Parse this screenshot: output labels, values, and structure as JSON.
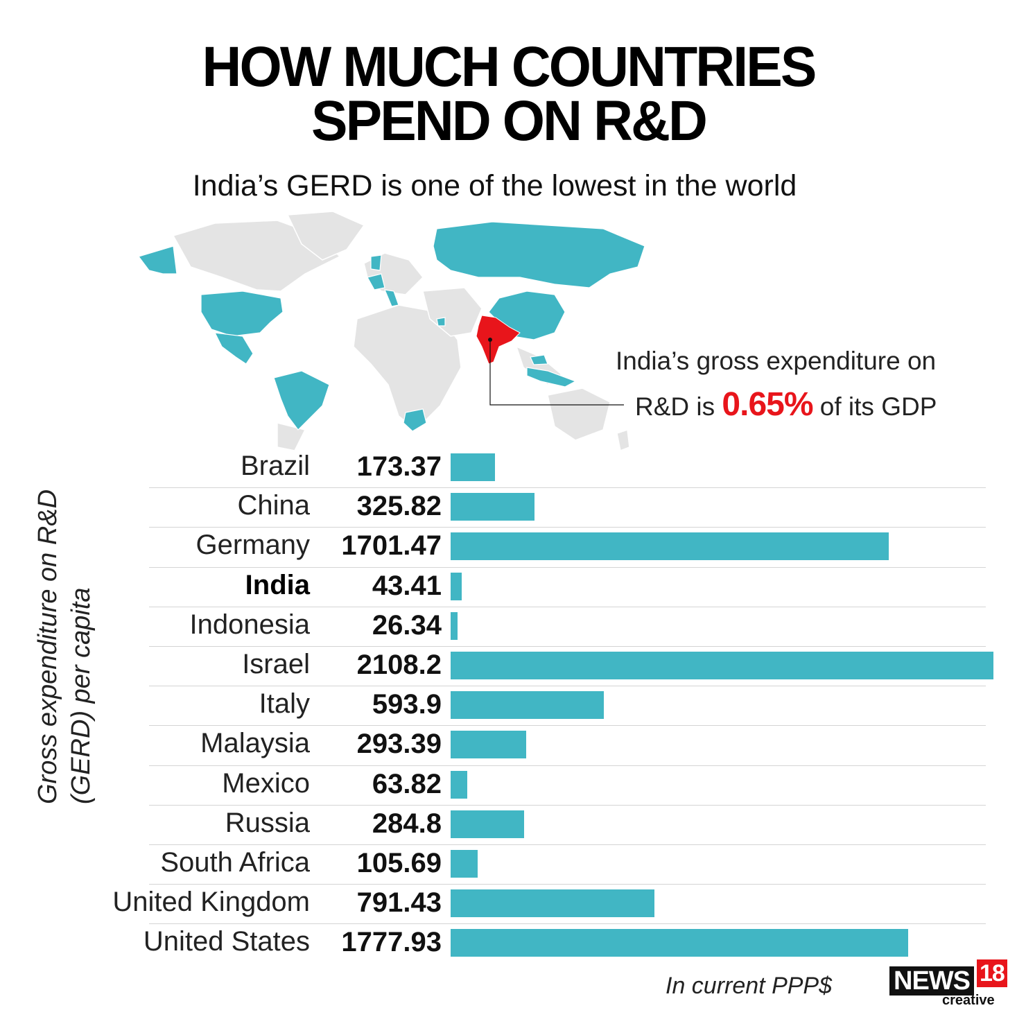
{
  "header": {
    "title_line1": "HOW MUCH COUNTRIES",
    "title_line2": "SPEND ON R&D",
    "subtitle": "India’s GERD is one of the lowest in the world"
  },
  "callout": {
    "line1": "India’s gross expenditure on",
    "line2_prefix": "R&D is",
    "line2_value": "0.65%",
    "line2_suffix": "of its GDP"
  },
  "colors": {
    "bar": "#41b6c4",
    "highlight": "#e8151b",
    "map_land": "#e4e4e4"
  },
  "chart_data": {
    "type": "bar",
    "orientation": "horizontal",
    "ylabel": "Gross expenditure on R&D (GERD) per capita",
    "unit_note": "In current PPP$",
    "categories": [
      "Brazil",
      "China",
      "Germany",
      "India",
      "Indonesia",
      "Israel",
      "Italy",
      "Malaysia",
      "Mexico",
      "Russia",
      "South Africa",
      "United Kingdom",
      "United States"
    ],
    "value_labels": [
      "173.37",
      "325.82",
      "1701.47",
      "43.41",
      "26.34",
      "2108.2",
      "593.9",
      "293.39",
      "63.82",
      "284.8",
      "105.69",
      "791.43",
      "1777.93"
    ],
    "values": [
      173.37,
      325.82,
      1701.47,
      43.41,
      26.34,
      2108.2,
      593.9,
      293.39,
      63.82,
      284.8,
      105.69,
      791.43,
      1777.93
    ],
    "highlight": "India",
    "xlim": [
      0,
      2108.2
    ]
  },
  "brand": {
    "news": "NEWS",
    "number": "18",
    "sub": "creative"
  }
}
